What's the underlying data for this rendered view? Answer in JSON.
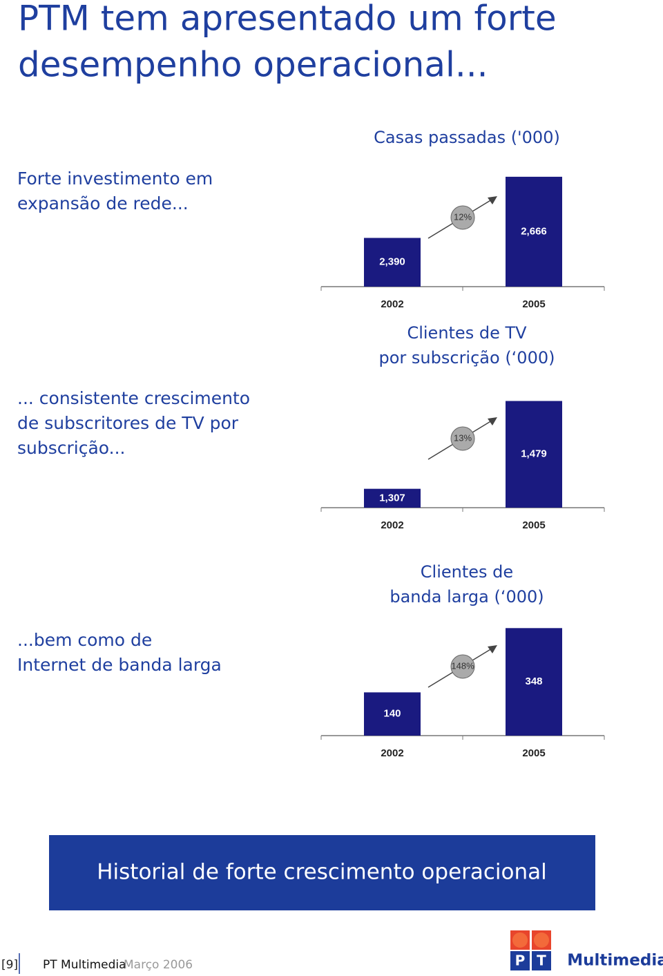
{
  "title": [
    "PTM tem apresentado um forte",
    "desempenho operacional..."
  ],
  "notes": [
    [
      "Forte investimento em",
      "expansão de rede..."
    ],
    [
      "... consistente crescimento",
      "de subscritores de TV por",
      "subscrição..."
    ],
    [
      "...bem como de",
      "Internet de banda larga"
    ]
  ],
  "chart_data": [
    {
      "type": "bar",
      "title": [
        "Casas passadas ('000)"
      ],
      "categories": [
        "2002",
        "2005"
      ],
      "values": [
        2390,
        2666
      ],
      "value_labels": [
        "2,390",
        "2,666"
      ],
      "growth": "12%",
      "color": "#1a1a80",
      "ylim": [
        2170,
        2700
      ]
    },
    {
      "type": "bar",
      "title": [
        "Clientes de TV",
        "por subscrição (‘000)"
      ],
      "categories": [
        "2002",
        "2005"
      ],
      "values": [
        1307,
        1479
      ],
      "value_labels": [
        "1,307",
        "1,479"
      ],
      "growth": "13%",
      "color": "#1a1a80",
      "ylim": [
        1270,
        1500
      ]
    },
    {
      "type": "bar",
      "title": [
        "Clientes de",
        "banda larga (‘000)"
      ],
      "categories": [
        "2002",
        "2005"
      ],
      "values": [
        140,
        348
      ],
      "value_labels": [
        "140",
        "348"
      ],
      "growth": "148%",
      "color": "#1a1a80",
      "ylim": [
        0,
        380
      ]
    }
  ],
  "banner": "Historial de forte crescimento operacional",
  "footer": {
    "page": "[9]",
    "company": "PT Multimedia",
    "date": "Março 2006"
  },
  "logo": {
    "p": "P",
    "t": "T",
    "name": "Multimedia"
  }
}
